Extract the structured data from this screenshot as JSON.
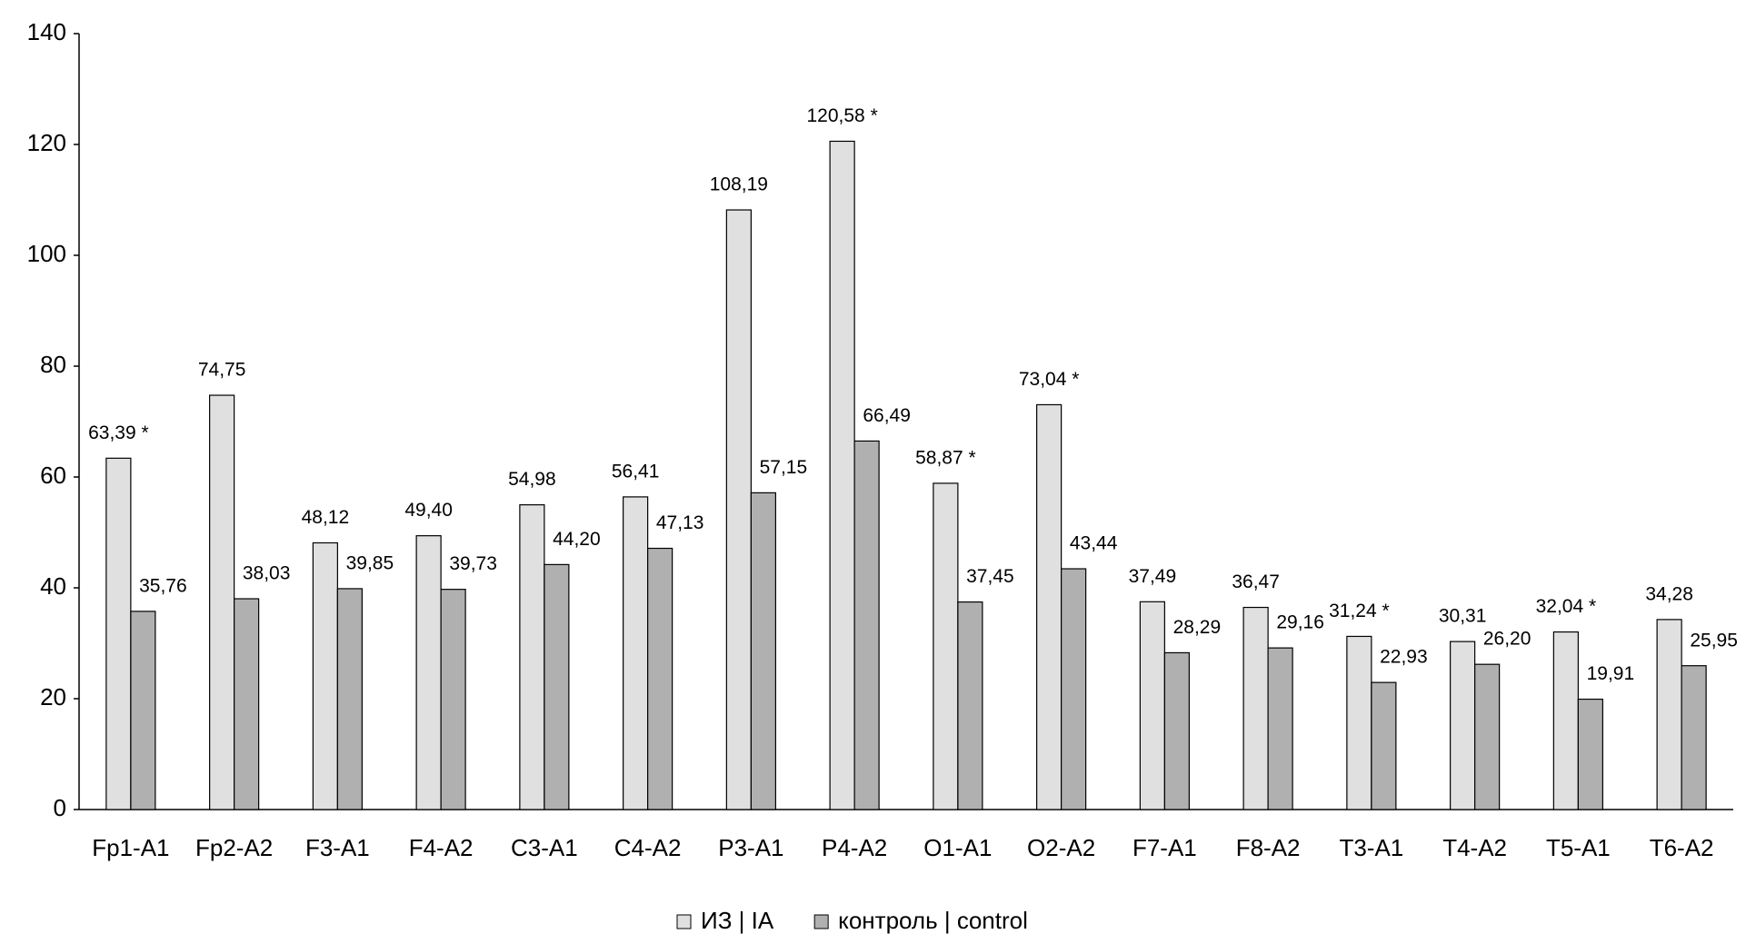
{
  "chart_data": {
    "type": "bar",
    "categories": [
      "Fp1-A1",
      "Fp2-A2",
      "F3-A1",
      "F4-A2",
      "C3-A1",
      "C4-A2",
      "P3-A1",
      "P4-A2",
      "O1-A1",
      "O2-A2",
      "F7-A1",
      "F8-A2",
      "T3-A1",
      "T4-A2",
      "T5-A1",
      "T6-A2"
    ],
    "series": [
      {
        "name": "ИЗ | IA",
        "color": "#e0e0e0",
        "values": [
          63.39,
          74.75,
          48.12,
          49.4,
          54.98,
          56.41,
          108.19,
          120.58,
          58.87,
          73.04,
          37.49,
          36.47,
          31.24,
          30.31,
          32.04,
          34.28
        ],
        "value_labels": [
          "63,39 *",
          "74,75",
          "48,12",
          "49,40",
          "54,98",
          "56,41",
          "108,19",
          "120,58 *",
          "58,87 *",
          "73,04 *",
          "37,49",
          "36,47",
          "31,24 *",
          "30,31",
          "32,04 *",
          "34,28"
        ]
      },
      {
        "name": "контроль | control",
        "color": "#b0b0b0",
        "values": [
          35.76,
          38.03,
          39.85,
          39.73,
          44.2,
          47.13,
          57.15,
          66.49,
          37.45,
          43.44,
          28.29,
          29.16,
          22.93,
          26.2,
          19.91,
          25.95
        ],
        "value_labels": [
          "35,76",
          "38,03",
          "39,85",
          "39,73",
          "44,20",
          "47,13",
          "57,15",
          "66,49",
          "37,45",
          "43,44",
          "28,29",
          "29,16",
          "22,93",
          "26,20",
          "19,91",
          "25,95"
        ]
      }
    ],
    "ylim": [
      0,
      140
    ],
    "yticks": [
      0,
      20,
      40,
      60,
      80,
      100,
      120,
      140
    ],
    "legend": "bottom"
  }
}
